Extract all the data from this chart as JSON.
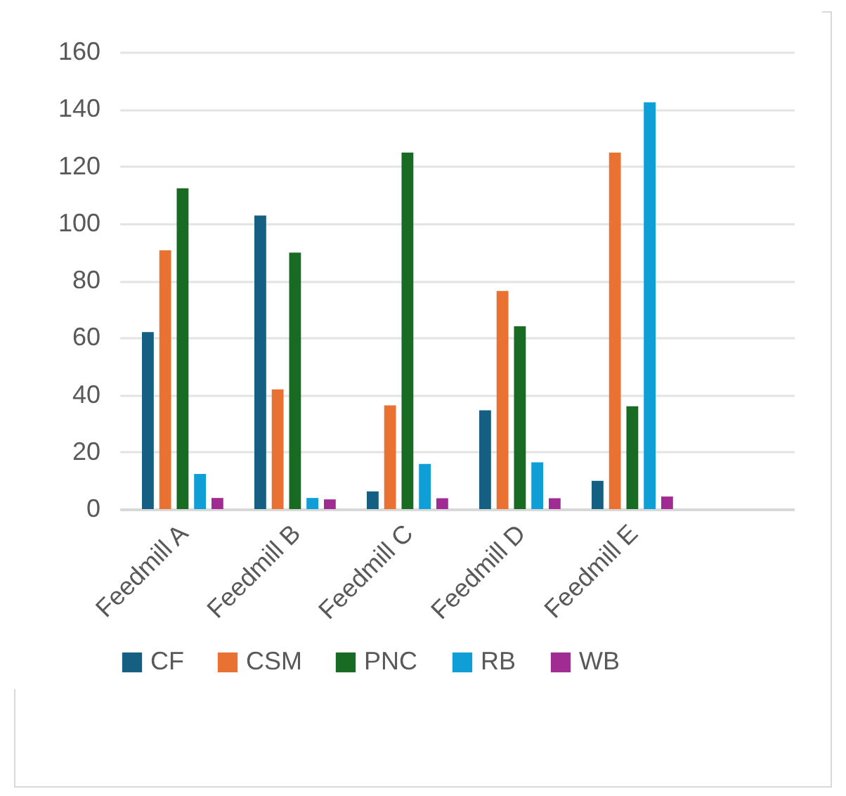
{
  "chart_data": {
    "type": "bar",
    "categories": [
      "Feedmill A",
      "Feedmill B",
      "Feedmill C",
      "Feedmill D",
      "Feedmill E",
      null
    ],
    "series": [
      {
        "name": "CF",
        "color": "#156082",
        "values": [
          62,
          102.8,
          6.2,
          34.6,
          9.9,
          null
        ]
      },
      {
        "name": "CSM",
        "color": "#e97132",
        "values": [
          90.6,
          41.9,
          36.3,
          76.4,
          124.8,
          null
        ]
      },
      {
        "name": "PNC",
        "color": "#196b24",
        "values": [
          112.3,
          89.8,
          124.8,
          64,
          36,
          null
        ]
      },
      {
        "name": "RB",
        "color": "#0f9ed5",
        "values": [
          12.3,
          3.9,
          15.8,
          16.4,
          142.4,
          null
        ]
      },
      {
        "name": "WB",
        "color": "#a02b93",
        "values": [
          3.9,
          3.4,
          3.8,
          3.8,
          4.4,
          null
        ]
      }
    ],
    "ylim": [
      0,
      160
    ],
    "yticks": [
      0,
      20,
      40,
      60,
      80,
      100,
      120,
      140,
      160
    ],
    "grid": "y",
    "legend": "bottom"
  }
}
